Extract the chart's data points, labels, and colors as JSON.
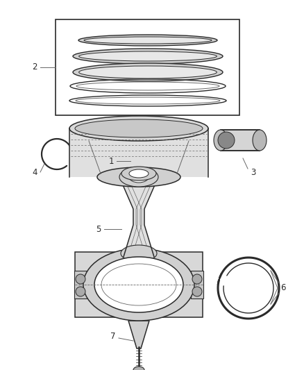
{
  "bg_color": "#ffffff",
  "lc": "#2a2a2a",
  "llc": "#666666",
  "flc": "#aaaaaa",
  "fig_w": 4.38,
  "fig_h": 5.33,
  "dpi": 100
}
